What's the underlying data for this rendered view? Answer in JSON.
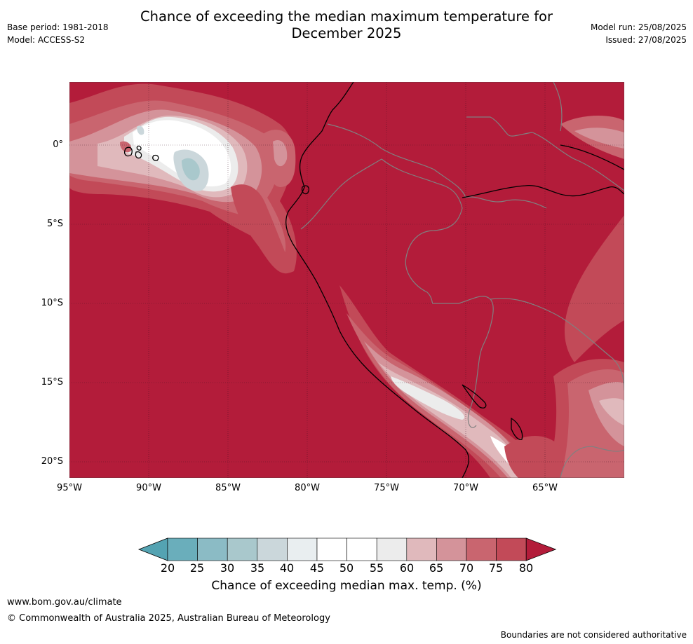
{
  "header": {
    "title_line1": "Chance of exceeding the median maximum temperature for",
    "title_line2": "December 2025",
    "base_period": "Base period: 1981-2018",
    "model": "Model: ACCESS-S2",
    "model_run": "Model run: 25/08/2025",
    "issued": "Issued: 27/08/2025"
  },
  "map": {
    "lat_labels": [
      "0°",
      "5°S",
      "10°S",
      "15°S",
      "20°S"
    ],
    "lon_labels": [
      "95°W",
      "90°W",
      "85°W",
      "80°W",
      "75°W",
      "70°W",
      "65°W"
    ],
    "colors": {
      "ocean_high": "#b31c3a",
      "p75": "#c24a58",
      "p70": "#c9656f",
      "p65": "#d4939a",
      "p60": "#e0b9bc",
      "p55": "#ececec",
      "p50": "#ffffff",
      "p45": "#e9eef0",
      "p40": "#cbd7db",
      "p35": "#a9c8cc",
      "coast": "#000000",
      "border": "#808080"
    }
  },
  "colorbar": {
    "label": "Chance of exceeding median max. temp. (%)",
    "ticks": [
      "20",
      "25",
      "30",
      "35",
      "40",
      "45",
      "50",
      "55",
      "60",
      "65",
      "70",
      "75",
      "80"
    ],
    "bins": [
      "#6aaebb",
      "#8bbbc5",
      "#a9c8cc",
      "#cbd7db",
      "#e9eef0",
      "#ffffff",
      "#ffffff",
      "#ececec",
      "#e0b9bc",
      "#d4939a",
      "#c9656f",
      "#c24a58"
    ],
    "low_extend": "#54a3b2",
    "high_extend": "#b31c3a"
  },
  "footer": {
    "url": "www.bom.gov.au/climate",
    "copyright": "© Commonwealth of Australia 2025, Australian Bureau of Meteorology",
    "disclaimer": "Boundaries are not considered authoritative"
  }
}
